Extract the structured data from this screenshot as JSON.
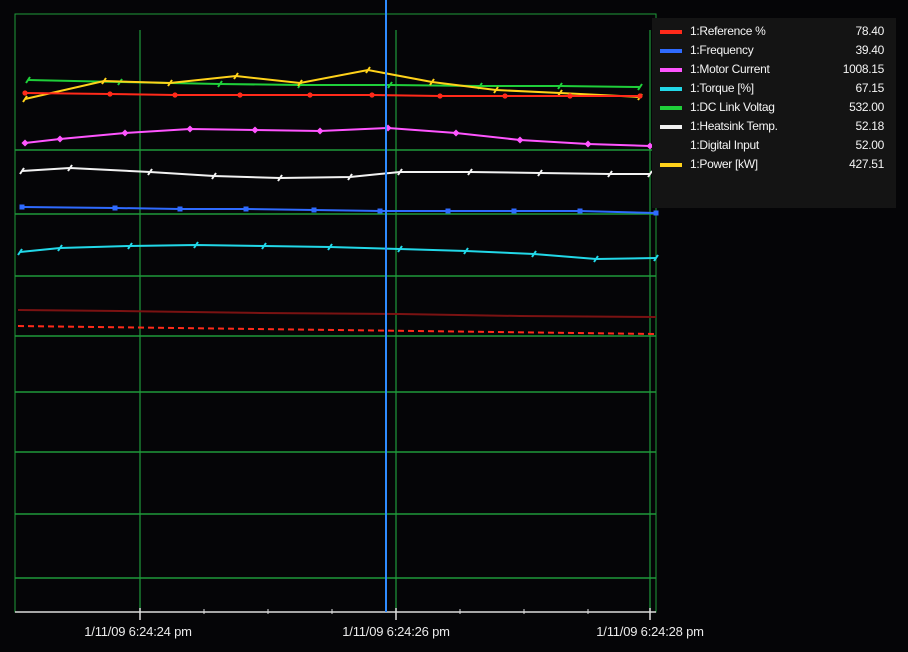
{
  "chart_data": {
    "type": "line",
    "x": [
      "1/11/09 6:24:24 pm",
      "1/11/09 6:24:26 pm",
      "1/11/09 6:24:28 pm"
    ],
    "xtick_labels": [
      "1/11/09 6:24:24 pm",
      "1/11/09 6:24:26 pm",
      "1/11/09 6:24:28 pm"
    ],
    "cursor_label": "1/11/09 6:24:26 pm",
    "grid": true,
    "legend_placement": "top-right",
    "colors": {
      "background": "#050507",
      "grid": "#1f9a3a",
      "cursor": "#2e8cff",
      "legend_panel": "#141414"
    },
    "series": [
      {
        "name": "1:Reference %",
        "value": "78.40",
        "color": "#ff2a1a"
      },
      {
        "name": "1:Frequency",
        "value": "39.40",
        "color": "#2f6bff"
      },
      {
        "name": "1:Motor Current",
        "value": "1008.15",
        "color": "#ff55ff"
      },
      {
        "name": "1:Torque [%]",
        "value": "67.15",
        "color": "#22d8e8"
      },
      {
        "name": "1:DC Link Voltag",
        "value": "532.00",
        "color": "#1fcf3a"
      },
      {
        "name": "1:Heatsink Temp.",
        "value": "52.18",
        "color": "#f2f2f2"
      },
      {
        "name": "1:Digital Input",
        "value": "52.00",
        "color": ""
      },
      {
        "name": "1:Power [kW]",
        "value": "427.51",
        "color": "#ffd21a"
      }
    ]
  }
}
